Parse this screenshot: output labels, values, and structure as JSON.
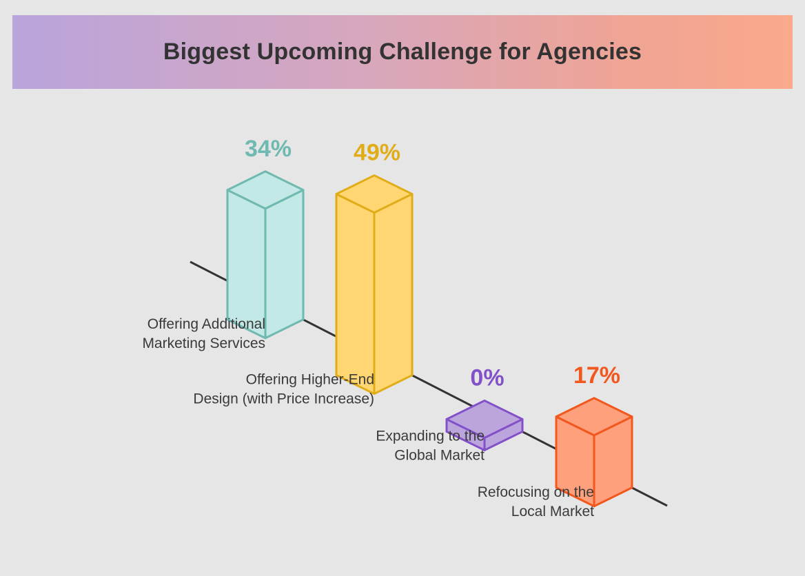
{
  "chart_data": {
    "type": "bar",
    "title": "Biggest Upcoming Challenge for Agencies",
    "value_suffix": "%",
    "categories": [
      "Offering Additional Marketing Services",
      "Offering Higher-End Design (with Price Increase)",
      "Expanding to the Global Market",
      "Refocusing on the Local Market"
    ],
    "category_lines": [
      [
        "Offering Additional",
        "Marketing Services"
      ],
      [
        "Offering Higher-End",
        "Design (with Price Increase)"
      ],
      [
        "Expanding to the",
        "Global Market"
      ],
      [
        "Refocusing on the",
        "Local Market"
      ]
    ],
    "values": [
      34,
      49,
      0,
      17
    ],
    "value_labels": [
      "34%",
      "49%",
      "0%",
      "17%"
    ],
    "colors": {
      "fills": [
        "#c2e9e5",
        "#ffd672",
        "#bba5dc",
        "#ffa07d"
      ],
      "strokes": [
        "#6fb9b1",
        "#e0ad18",
        "#8250c8",
        "#f2581e"
      ],
      "labels": [
        "#6fb9b1",
        "#e0ad18",
        "#8250c8",
        "#f2581e"
      ],
      "axis": "#333333",
      "background": "#e6e6e6"
    },
    "ylim": [
      0,
      49
    ]
  }
}
